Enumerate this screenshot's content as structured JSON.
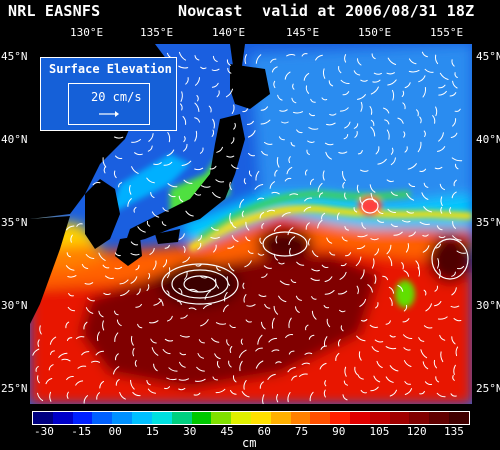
{
  "header": {
    "left": "NRL EASNFS",
    "middle": "Nowcast",
    "right": "valid at 2006/08/31 18Z"
  },
  "axes": {
    "lon_labels": [
      "130°E",
      "135°E",
      "140°E",
      "145°E",
      "150°E",
      "155°E"
    ],
    "lat_labels": [
      "45°N",
      "40°N",
      "35°N",
      "30°N",
      "25°N"
    ]
  },
  "legend": {
    "title": "Surface Elevation",
    "reference": "20 cm/s"
  },
  "colorbar": {
    "ticks": [
      "-30",
      "-15",
      "00",
      "15",
      "30",
      "45",
      "60",
      "75",
      "90",
      "105",
      "120",
      "135"
    ],
    "unit": "cm",
    "colors": [
      "#000080",
      "#0000c8",
      "#0020ff",
      "#0060ff",
      "#0090ff",
      "#00c0ff",
      "#00e0e0",
      "#00d080",
      "#00c800",
      "#80e000",
      "#e0f000",
      "#ffe000",
      "#ffb000",
      "#ff8000",
      "#ff5000",
      "#ff2000",
      "#e00000",
      "#c00000",
      "#a00000",
      "#800000",
      "#600000",
      "#400000"
    ]
  },
  "map_colors": {
    "land": "#000000",
    "north_sea": "#1a5fe0",
    "japan_sea": "#1e6af0",
    "oyashio": "#2a8cf0",
    "transition": "#00c8ff",
    "front": "#3cd060",
    "kuroshio": "#ff6000",
    "subtropic": "#e81800",
    "warm_core": "#800000",
    "deep_eddy": "#3a0000",
    "coastal_green": "#50e040"
  }
}
